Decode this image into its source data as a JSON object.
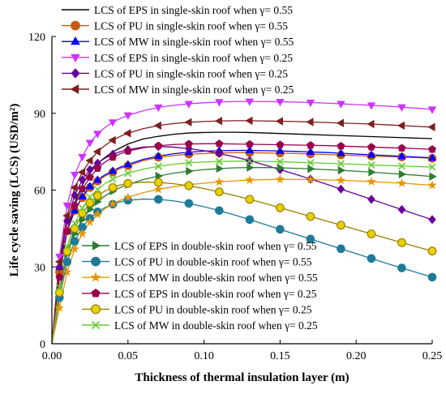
{
  "chart_data": {
    "type": "line",
    "xlabel": "Thickness of thermal insulation layer (m)",
    "ylabel": "Life cycle saving (LCS)  (USD/m²)",
    "xlim": [
      0,
      0.25
    ],
    "ylim": [
      0,
      120
    ],
    "xticks": [
      "0.00",
      "0.05",
      "0.10",
      "0.15",
      "0.20",
      "0.25"
    ],
    "yticks": [
      "0",
      "30",
      "60",
      "90",
      "120"
    ],
    "grid": false,
    "legend_placement": [
      "top-left",
      "bottom-left"
    ],
    "series": [
      {
        "name": "LCS of EPS in single-skin roof when γ= 0.55",
        "color": "#000000",
        "marker": "none",
        "x": [
          0.0,
          0.0025,
          0.005,
          0.0075,
          0.01,
          0.015,
          0.02,
          0.025,
          0.03,
          0.04,
          0.05,
          0.06,
          0.07,
          0.08,
          0.09,
          0.1,
          0.11,
          0.12,
          0.13,
          0.14,
          0.15,
          0.16,
          0.17,
          0.18,
          0.19,
          0.2,
          0.21,
          0.22,
          0.23,
          0.24,
          0.25
        ],
        "y": [
          0,
          14,
          26,
          36,
          44,
          55,
          62,
          67,
          70.5,
          75,
          78,
          80,
          81,
          81.8,
          82.3,
          82.5,
          82.6,
          82.6,
          82.5,
          82.3,
          82.1,
          81.9,
          81.7,
          81.5,
          81.3,
          81.1,
          80.9,
          80.7,
          80.5,
          80.3,
          80.1
        ]
      },
      {
        "name": "LCS of PU in single-skin roof when γ= 0.55",
        "color": "#c55a11",
        "marker": "circle",
        "x": [
          0.0,
          0.005,
          0.01,
          0.015,
          0.02,
          0.025,
          0.03,
          0.035,
          0.04,
          0.045,
          0.05,
          0.06,
          0.07,
          0.08,
          0.09,
          0.1,
          0.11,
          0.12,
          0.13,
          0.14,
          0.15,
          0.16,
          0.17,
          0.18,
          0.19,
          0.2,
          0.21,
          0.22,
          0.23,
          0.24,
          0.25
        ],
        "y": [
          0,
          28,
          44,
          52,
          57,
          61,
          63.5,
          65.5,
          67,
          68.5,
          69.5,
          71.5,
          72.8,
          73.5,
          74,
          74.3,
          74.5,
          74.6,
          74.6,
          74.5,
          74.4,
          74.3,
          74.1,
          73.9,
          73.7,
          73.5,
          73.3,
          73.1,
          72.9,
          72.7,
          72.4
        ]
      },
      {
        "name": "LCS of MW in single-skin roof when γ= 0.55",
        "color": "#0000ff",
        "marker": "triangle-up",
        "x": [
          0.0,
          0.005,
          0.01,
          0.015,
          0.02,
          0.025,
          0.03,
          0.035,
          0.04,
          0.045,
          0.05,
          0.06,
          0.07,
          0.08,
          0.09,
          0.1,
          0.11,
          0.12,
          0.13,
          0.14,
          0.15,
          0.16,
          0.17,
          0.18,
          0.19,
          0.2,
          0.21,
          0.22,
          0.23,
          0.24,
          0.25
        ],
        "y": [
          0,
          30,
          44,
          52,
          57.5,
          61.5,
          64,
          66,
          67.5,
          69,
          70,
          72,
          73.3,
          74.2,
          74.8,
          75.2,
          75.4,
          75.5,
          75.5,
          75.4,
          75.3,
          75.1,
          74.9,
          74.7,
          74.4,
          74.1,
          73.8,
          73.5,
          73.2,
          72.9,
          72.6
        ]
      },
      {
        "name": "LCS of EPS in single-skin roof when γ= 0.25",
        "color": "#cc33ff",
        "marker": "triangle-down",
        "x": [
          0.0,
          0.005,
          0.01,
          0.015,
          0.02,
          0.025,
          0.03,
          0.035,
          0.04,
          0.045,
          0.05,
          0.06,
          0.07,
          0.08,
          0.09,
          0.1,
          0.11,
          0.12,
          0.13,
          0.14,
          0.15,
          0.16,
          0.17,
          0.18,
          0.19,
          0.2,
          0.21,
          0.22,
          0.23,
          0.24,
          0.25
        ],
        "y": [
          0,
          34,
          54,
          66,
          73,
          78.5,
          82,
          84.5,
          86.5,
          88,
          89.2,
          91,
          92.3,
          93.1,
          93.7,
          94.1,
          94.4,
          94.6,
          94.6,
          94.6,
          94.5,
          94.4,
          94.2,
          94,
          93.7,
          93.4,
          93.1,
          92.8,
          92.4,
          92,
          91.5
        ]
      },
      {
        "name": "LCS of PU in single-skin roof when γ= 0.25",
        "color": "#660099",
        "marker": "diamond",
        "x": [
          0.0,
          0.005,
          0.01,
          0.015,
          0.02,
          0.025,
          0.03,
          0.035,
          0.04,
          0.045,
          0.05,
          0.06,
          0.07,
          0.08,
          0.09,
          0.1,
          0.11,
          0.12,
          0.13,
          0.14,
          0.15,
          0.16,
          0.17,
          0.18,
          0.19,
          0.2,
          0.21,
          0.22,
          0.23,
          0.24,
          0.25
        ],
        "y": [
          0,
          30,
          48,
          58,
          64,
          68,
          70.5,
          72.5,
          74,
          75,
          75.8,
          76.8,
          77,
          76.8,
          76.2,
          75.4,
          74.3,
          73,
          71.5,
          69.8,
          68,
          66.2,
          64.3,
          62.4,
          60.4,
          58.4,
          56.4,
          54.4,
          52.4,
          50.4,
          48.5
        ]
      },
      {
        "name": "LCS of MW in single-skin roof when γ= 0.25",
        "color": "#7f1f1f",
        "marker": "triangle-left",
        "x": [
          0.0,
          0.005,
          0.01,
          0.015,
          0.02,
          0.025,
          0.03,
          0.035,
          0.04,
          0.045,
          0.05,
          0.06,
          0.07,
          0.08,
          0.09,
          0.1,
          0.11,
          0.12,
          0.13,
          0.14,
          0.15,
          0.16,
          0.17,
          0.18,
          0.19,
          0.2,
          0.21,
          0.22,
          0.23,
          0.24,
          0.25
        ],
        "y": [
          0,
          32,
          50,
          61,
          67,
          71.5,
          75,
          77.5,
          79.5,
          81,
          82.2,
          84,
          85.2,
          86,
          86.5,
          86.8,
          87,
          87.1,
          87.1,
          87,
          86.9,
          86.8,
          86.6,
          86.4,
          86.2,
          86,
          85.8,
          85.5,
          85.2,
          84.9,
          84.6
        ]
      },
      {
        "name": "LCS of EPS in double-skin roof when γ= 0.55",
        "color": "#2e7d32",
        "marker": "triangle-right",
        "x": [
          0.0,
          0.005,
          0.01,
          0.015,
          0.02,
          0.025,
          0.03,
          0.035,
          0.04,
          0.045,
          0.05,
          0.06,
          0.07,
          0.08,
          0.09,
          0.1,
          0.11,
          0.12,
          0.13,
          0.14,
          0.15,
          0.16,
          0.17,
          0.18,
          0.19,
          0.2,
          0.21,
          0.22,
          0.23,
          0.24,
          0.25
        ],
        "y": [
          0,
          20,
          35,
          43,
          48.5,
          52.5,
          55.5,
          57.8,
          59.6,
          61,
          62.2,
          64.1,
          65.5,
          66.6,
          67.4,
          68,
          68.4,
          68.7,
          68.8,
          68.8,
          68.7,
          68.5,
          68.3,
          68,
          67.7,
          67.4,
          67,
          66.6,
          66.2,
          65.8,
          65.3
        ]
      },
      {
        "name": "LCS of PU in double-skin roof when γ= 0.55",
        "color": "#1f7a99",
        "marker": "circle",
        "x": [
          0.0,
          0.005,
          0.01,
          0.015,
          0.02,
          0.025,
          0.03,
          0.035,
          0.04,
          0.045,
          0.05,
          0.06,
          0.07,
          0.08,
          0.09,
          0.1,
          0.11,
          0.12,
          0.13,
          0.14,
          0.15,
          0.16,
          0.17,
          0.18,
          0.19,
          0.2,
          0.21,
          0.22,
          0.23,
          0.24,
          0.25
        ],
        "y": [
          0,
          18,
          32,
          40,
          45.5,
          49,
          51.5,
          53.2,
          54.5,
          55.4,
          56,
          56.5,
          56.4,
          55.8,
          54.8,
          53.5,
          52,
          50.3,
          48.5,
          46.6,
          44.7,
          42.8,
          40.9,
          39,
          37.1,
          35.2,
          33.3,
          31.4,
          29.6,
          27.8,
          26
        ]
      },
      {
        "name": "LCS of MW in double-skin roof when γ= 0.55",
        "color": "#e69500",
        "marker": "star",
        "x": [
          0.0,
          0.005,
          0.01,
          0.015,
          0.02,
          0.025,
          0.03,
          0.035,
          0.04,
          0.045,
          0.05,
          0.06,
          0.07,
          0.08,
          0.09,
          0.1,
          0.11,
          0.12,
          0.13,
          0.14,
          0.15,
          0.16,
          0.17,
          0.18,
          0.19,
          0.2,
          0.21,
          0.22,
          0.23,
          0.24,
          0.25
        ],
        "y": [
          0,
          14,
          28,
          37,
          43,
          47.5,
          50.5,
          52.8,
          54.6,
          56,
          57.2,
          59,
          60.3,
          61.3,
          62.1,
          62.7,
          63.2,
          63.6,
          63.9,
          64.1,
          64.2,
          64.2,
          64.1,
          64,
          63.8,
          63.6,
          63.3,
          63,
          62.7,
          62.3,
          61.9
        ]
      },
      {
        "name": "LCS of EPS in double-skin roof when γ= 0.25",
        "color": "#99004c",
        "marker": "pentagon",
        "x": [
          0.0,
          0.005,
          0.01,
          0.015,
          0.02,
          0.025,
          0.03,
          0.035,
          0.04,
          0.045,
          0.05,
          0.06,
          0.07,
          0.08,
          0.09,
          0.1,
          0.11,
          0.12,
          0.13,
          0.14,
          0.15,
          0.16,
          0.17,
          0.18,
          0.19,
          0.2,
          0.21,
          0.22,
          0.23,
          0.24,
          0.25
        ],
        "y": [
          0,
          26,
          44,
          54,
          60.5,
          65,
          68.5,
          71,
          72.8,
          74.2,
          75.2,
          76.5,
          77.3,
          77.8,
          78,
          78.1,
          78.1,
          78,
          77.9,
          77.8,
          77.7,
          77.6,
          77.5,
          77.4,
          77.2,
          77,
          76.8,
          76.6,
          76.4,
          76.2,
          75.9
        ]
      },
      {
        "name": "LCS of PU in double-skin roof when γ= 0.25",
        "color": "#9a7d00",
        "marker": "half-circle",
        "x": [
          0.0,
          0.005,
          0.01,
          0.015,
          0.02,
          0.025,
          0.03,
          0.035,
          0.04,
          0.045,
          0.05,
          0.06,
          0.07,
          0.08,
          0.09,
          0.1,
          0.11,
          0.12,
          0.13,
          0.14,
          0.15,
          0.16,
          0.17,
          0.18,
          0.19,
          0.2,
          0.21,
          0.22,
          0.23,
          0.24,
          0.25
        ],
        "y": [
          0,
          20,
          36,
          45,
          51,
          55,
          57.8,
          59.7,
          61,
          62,
          62.6,
          63.1,
          63,
          62.5,
          61.7,
          60.6,
          59.3,
          57.9,
          56.4,
          54.8,
          53.1,
          51.4,
          49.7,
          48,
          46.3,
          44.6,
          42.9,
          41.2,
          39.5,
          37.8,
          36.2
        ]
      },
      {
        "name": "LCS of MW in double-skin roof when γ= 0.25",
        "color": "#66cc33",
        "marker": "x",
        "x": [
          0.0,
          0.005,
          0.01,
          0.015,
          0.02,
          0.025,
          0.03,
          0.035,
          0.04,
          0.045,
          0.05,
          0.06,
          0.07,
          0.08,
          0.09,
          0.1,
          0.11,
          0.12,
          0.13,
          0.14,
          0.15,
          0.16,
          0.17,
          0.18,
          0.19,
          0.2,
          0.21,
          0.22,
          0.23,
          0.24,
          0.25
        ],
        "y": [
          0,
          22,
          38,
          47,
          53,
          57.3,
          60.3,
          62.6,
          64.3,
          65.6,
          66.6,
          68.2,
          69.3,
          70.1,
          70.7,
          71,
          71.2,
          71.3,
          71.3,
          71.2,
          71.1,
          70.9,
          70.7,
          70.5,
          70.3,
          70.1,
          69.8,
          69.6,
          69.4,
          69.2,
          69
        ]
      }
    ]
  }
}
